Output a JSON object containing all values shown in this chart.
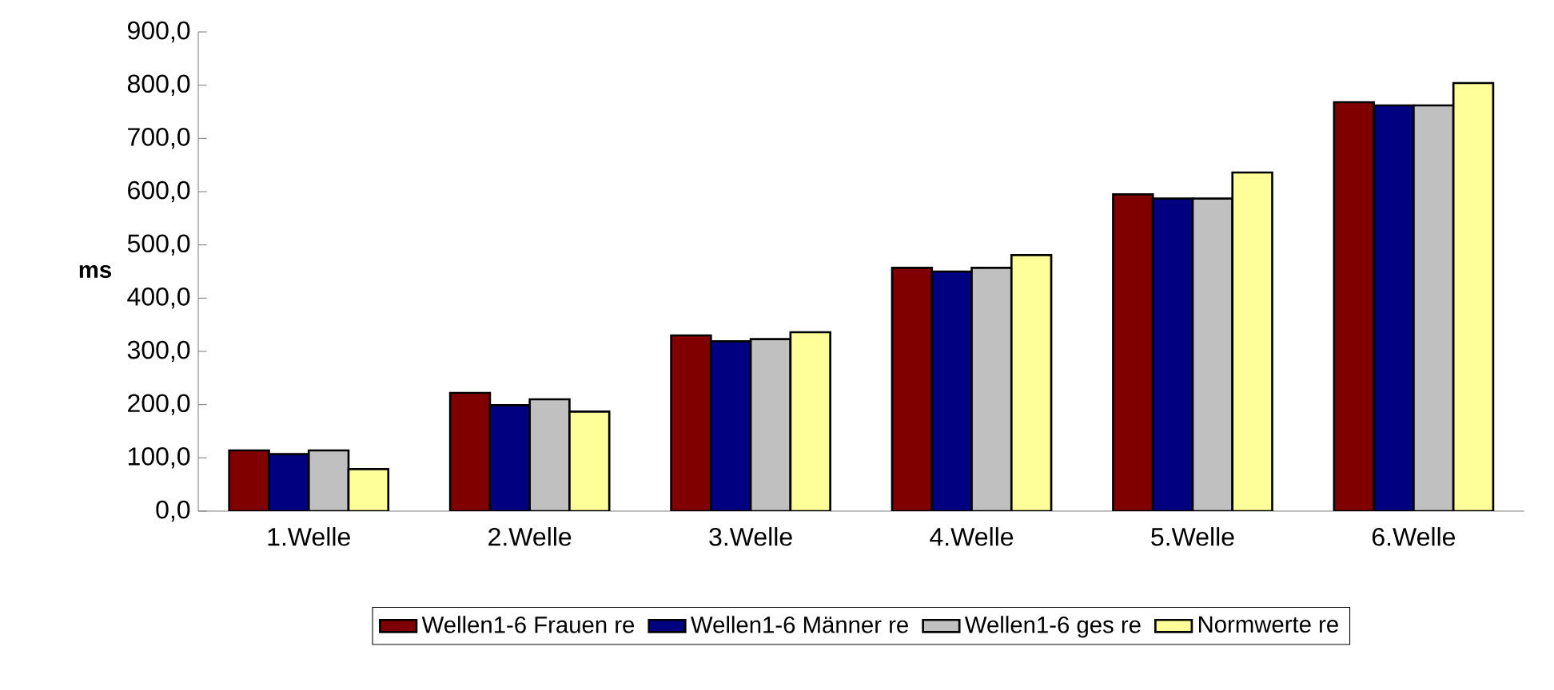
{
  "chart_data": {
    "type": "bar",
    "ylabel": "ms",
    "categories": [
      "1.Welle",
      "2.Welle",
      "3.Welle",
      "4.Welle",
      "5.Welle",
      "6.Welle"
    ],
    "series": [
      {
        "name": "Wellen1-6 Frauen re",
        "color": "#800000",
        "values": [
          114,
          222,
          330,
          457,
          595,
          768
        ]
      },
      {
        "name": "Wellen1-6 Männer re",
        "color": "#000080",
        "values": [
          107,
          199,
          319,
          450,
          587,
          762
        ]
      },
      {
        "name": "Wellen1-6 ges re",
        "color": "#c0c0c0",
        "values": [
          114,
          210,
          323,
          457,
          587,
          762
        ]
      },
      {
        "name": "Normwerte re",
        "color": "#ffff99",
        "values": [
          79,
          187,
          336,
          481,
          636,
          804
        ]
      }
    ],
    "ylim": [
      0,
      900
    ],
    "yticks": [
      {
        "value": 0,
        "label": "0,0"
      },
      {
        "value": 100,
        "label": "100,0"
      },
      {
        "value": 200,
        "label": "200,0"
      },
      {
        "value": 300,
        "label": "300,0"
      },
      {
        "value": 400,
        "label": "400,0"
      },
      {
        "value": 500,
        "label": "500,0"
      },
      {
        "value": 600,
        "label": "600,0"
      },
      {
        "value": 700,
        "label": "700,0"
      },
      {
        "value": 800,
        "label": "800,0"
      },
      {
        "value": 900,
        "label": "900,0"
      }
    ],
    "grid": false,
    "legend": "bottom"
  }
}
